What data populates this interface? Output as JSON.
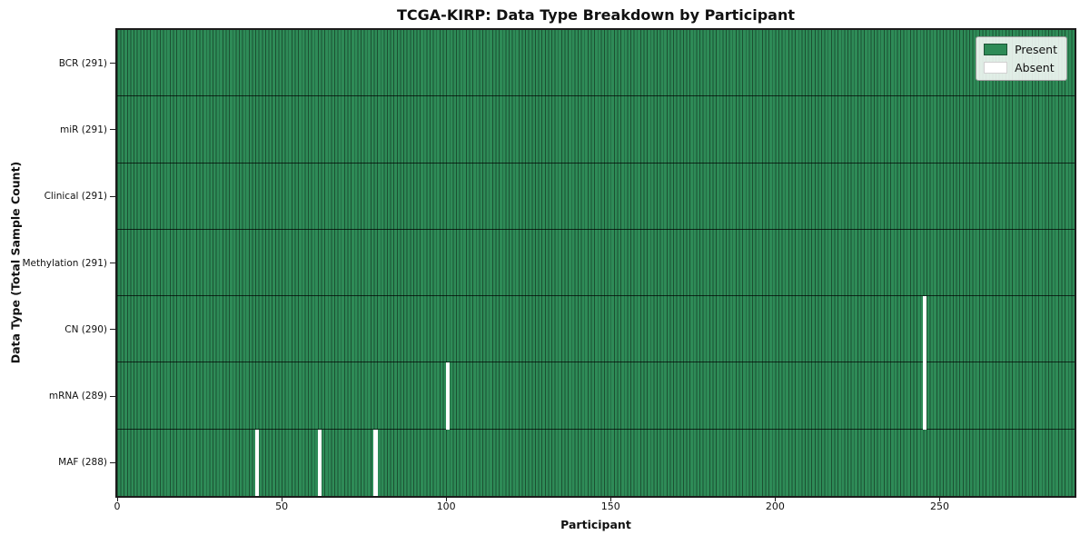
{
  "colors": {
    "present": "#2e8b57",
    "absent": "#ffffff",
    "cell_edge": "#1d4f33",
    "spine": "#1c1c1c"
  },
  "chart_data": {
    "type": "heatmap",
    "title": "TCGA-KIRP: Data Type Breakdown by Participant",
    "xlabel": "Participant",
    "ylabel": "Data Type (Total Sample Count)",
    "n_participants": 291,
    "x_range": [
      0,
      291
    ],
    "x_ticks": [
      0,
      50,
      100,
      150,
      200,
      250
    ],
    "grid": false,
    "legend_position": "upper right",
    "legend": [
      {
        "label": "Present",
        "color": "#2e8b57"
      },
      {
        "label": "Absent",
        "color": "#ffffff"
      }
    ],
    "rows": [
      {
        "name": "bcr",
        "label": "BCR (291)",
        "count": 291,
        "absent_participants": []
      },
      {
        "name": "mir",
        "label": "miR (291)",
        "count": 291,
        "absent_participants": []
      },
      {
        "name": "clinical",
        "label": "Clinical (291)",
        "count": 291,
        "absent_participants": []
      },
      {
        "name": "methylation",
        "label": "Methylation (291)",
        "count": 291,
        "absent_participants": []
      },
      {
        "name": "cn",
        "label": "CN (290)",
        "count": 290,
        "absent_participants": [
          245
        ]
      },
      {
        "name": "mrna",
        "label": "mRNA (289)",
        "count": 289,
        "absent_participants": [
          100,
          245
        ]
      },
      {
        "name": "maf",
        "label": "MAF (288)",
        "count": 288,
        "absent_participants": [
          42,
          61,
          78
        ]
      }
    ]
  }
}
